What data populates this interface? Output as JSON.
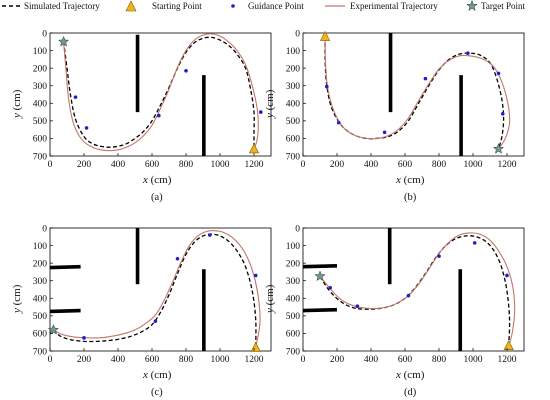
{
  "legend": {
    "simulated": "Simulated Trajectory",
    "starting": "Starting Point",
    "guidance": "Guidance Point",
    "experimental": "Experimental Trajectory",
    "target": "Target Point"
  },
  "colors": {
    "simulated": "#000000",
    "experimental": "#c0776a",
    "guidance": "#1f1fc8",
    "start_fill": "#f2b31d",
    "target_fill": "#6f9a8e",
    "obstacle": "#000000"
  },
  "chart_data": [
    {
      "type": "line",
      "label": "(a)",
      "xlabel": "x",
      "ylabel": "y",
      "unit": "(cm)",
      "xlim": [
        0,
        1300
      ],
      "ylim": [
        700,
        0
      ],
      "y_inverted": true,
      "xticks": [
        0,
        200,
        400,
        600,
        800,
        1000,
        1200
      ],
      "yticks": [
        0,
        100,
        200,
        300,
        400,
        500,
        600,
        700
      ],
      "start": [
        1200,
        660
      ],
      "target": [
        80,
        50
      ],
      "guidance_points": [
        [
          150,
          365
        ],
        [
          215,
          540
        ],
        [
          640,
          470
        ],
        [
          800,
          215
        ],
        [
          1240,
          450
        ]
      ],
      "obstacles": [
        [
          [
            515,
            10
          ],
          [
            515,
            450
          ]
        ],
        [
          [
            905,
            240
          ],
          [
            905,
            700
          ]
        ]
      ],
      "series": [
        {
          "name": "Simulated Trajectory",
          "x": [
            80,
            100,
            120,
            150,
            200,
            250,
            300,
            350,
            400,
            450,
            500,
            550,
            600,
            650,
            700,
            750,
            800,
            850,
            900,
            950,
            1000,
            1050,
            1100,
            1150,
            1180,
            1200,
            1200,
            1200,
            1200
          ],
          "y": [
            50,
            200,
            350,
            490,
            590,
            630,
            645,
            650,
            645,
            630,
            600,
            560,
            500,
            410,
            310,
            200,
            110,
            55,
            30,
            25,
            40,
            70,
            120,
            200,
            320,
            450,
            560,
            620,
            660
          ]
        },
        {
          "name": "Experimental Trajectory",
          "x": [
            80,
            95,
            110,
            140,
            190,
            250,
            300,
            350,
            400,
            450,
            500,
            550,
            600,
            650,
            700,
            750,
            800,
            850,
            900,
            950,
            1000,
            1050,
            1100,
            1150,
            1190,
            1220,
            1225,
            1215,
            1200
          ],
          "y": [
            50,
            220,
            380,
            520,
            610,
            650,
            665,
            670,
            665,
            650,
            625,
            585,
            525,
            430,
            320,
            195,
            100,
            40,
            12,
            5,
            18,
            50,
            100,
            180,
            300,
            440,
            550,
            620,
            660
          ]
        }
      ]
    },
    {
      "type": "line",
      "label": "(b)",
      "xlabel": "x",
      "ylabel": "y",
      "unit": "(cm)",
      "xlim": [
        0,
        1300
      ],
      "ylim": [
        700,
        0
      ],
      "y_inverted": true,
      "xticks": [
        0,
        200,
        400,
        600,
        800,
        1000,
        1200
      ],
      "yticks": [
        0,
        100,
        200,
        300,
        400,
        500,
        600,
        700
      ],
      "start": [
        130,
        20
      ],
      "target": [
        1150,
        660
      ],
      "guidance_points": [
        [
          140,
          305
        ],
        [
          210,
          510
        ],
        [
          480,
          565
        ],
        [
          720,
          260
        ],
        [
          970,
          115
        ],
        [
          1150,
          230
        ],
        [
          1175,
          460
        ]
      ],
      "obstacles": [
        [
          [
            515,
            0
          ],
          [
            515,
            450
          ]
        ],
        [
          [
            930,
            240
          ],
          [
            930,
            700
          ]
        ]
      ],
      "series": [
        {
          "name": "Simulated Trajectory",
          "x": [
            130,
            130,
            140,
            170,
            230,
            300,
            370,
            430,
            500,
            560,
            620,
            680,
            740,
            800,
            860,
            920,
            980,
            1040,
            1100,
            1140,
            1170,
            1180,
            1170,
            1150
          ],
          "y": [
            20,
            150,
            300,
            430,
            530,
            580,
            600,
            600,
            590,
            560,
            500,
            400,
            300,
            210,
            150,
            120,
            115,
            125,
            170,
            260,
            380,
            490,
            590,
            660
          ]
        },
        {
          "name": "Experimental Trajectory",
          "x": [
            130,
            132,
            145,
            180,
            240,
            310,
            380,
            440,
            500,
            560,
            620,
            680,
            740,
            800,
            860,
            920,
            980,
            1050,
            1120,
            1170,
            1205,
            1215,
            1190,
            1150
          ],
          "y": [
            20,
            160,
            310,
            440,
            540,
            585,
            600,
            600,
            585,
            550,
            485,
            385,
            290,
            205,
            155,
            130,
            130,
            145,
            190,
            280,
            400,
            510,
            600,
            660
          ]
        }
      ]
    },
    {
      "type": "line",
      "label": "(c)",
      "xlabel": "x",
      "ylabel": "y",
      "unit": "(cm)",
      "xlim": [
        0,
        1300
      ],
      "ylim": [
        700,
        0
      ],
      "y_inverted": true,
      "xticks": [
        0,
        200,
        400,
        600,
        800,
        1000,
        1200
      ],
      "yticks": [
        0,
        100,
        200,
        300,
        400,
        500,
        600,
        700
      ],
      "start": [
        1210,
        680
      ],
      "target": [
        20,
        580
      ],
      "guidance_points": [
        [
          200,
          625
        ],
        [
          620,
          530
        ],
        [
          750,
          175
        ],
        [
          940,
          40
        ],
        [
          1210,
          270
        ]
      ],
      "obstacles": [
        [
          [
            -30,
            225
          ],
          [
            180,
            220
          ]
        ],
        [
          [
            -30,
            475
          ],
          [
            180,
            470
          ]
        ],
        [
          [
            515,
            0
          ],
          [
            515,
            320
          ]
        ],
        [
          [
            905,
            235
          ],
          [
            905,
            700
          ]
        ]
      ],
      "series": [
        {
          "name": "Simulated Trajectory",
          "x": [
            20,
            60,
            120,
            200,
            280,
            350,
            420,
            480,
            540,
            600,
            650,
            700,
            750,
            800,
            850,
            900,
            950,
            1000,
            1050,
            1100,
            1150,
            1190,
            1210,
            1210
          ],
          "y": [
            580,
            615,
            635,
            645,
            645,
            640,
            630,
            615,
            590,
            550,
            480,
            380,
            260,
            150,
            80,
            45,
            35,
            45,
            75,
            130,
            220,
            360,
            520,
            680
          ]
        },
        {
          "name": "Experimental Trajectory",
          "x": [
            20,
            70,
            140,
            220,
            300,
            370,
            440,
            500,
            560,
            620,
            670,
            720,
            770,
            820,
            870,
            920,
            970,
            1020,
            1080,
            1140,
            1190,
            1225,
            1235,
            1210
          ],
          "y": [
            580,
            605,
            620,
            625,
            625,
            615,
            600,
            580,
            545,
            495,
            415,
            310,
            195,
            100,
            45,
            20,
            15,
            25,
            60,
            130,
            240,
            390,
            540,
            680
          ]
        }
      ]
    },
    {
      "type": "line",
      "label": "(d)",
      "xlabel": "x",
      "ylabel": "y",
      "unit": "(cm)",
      "xlim": [
        0,
        1300
      ],
      "ylim": [
        700,
        0
      ],
      "y_inverted": true,
      "xticks": [
        0,
        200,
        400,
        600,
        800,
        1000,
        1200
      ],
      "yticks": [
        0,
        100,
        200,
        300,
        400,
        500,
        600,
        700
      ],
      "start": [
        1210,
        670
      ],
      "target": [
        100,
        275
      ],
      "guidance_points": [
        [
          160,
          340
        ],
        [
          320,
          445
        ],
        [
          620,
          385
        ],
        [
          800,
          160
        ],
        [
          1010,
          85
        ],
        [
          1200,
          270
        ]
      ],
      "obstacles": [
        [
          [
            -30,
            220
          ],
          [
            200,
            215
          ]
        ],
        [
          [
            -30,
            470
          ],
          [
            200,
            465
          ]
        ],
        [
          [
            510,
            0
          ],
          [
            510,
            320
          ]
        ],
        [
          [
            925,
            235
          ],
          [
            925,
            700
          ]
        ]
      ],
      "series": [
        {
          "name": "Simulated Trajectory",
          "x": [
            100,
            150,
            210,
            270,
            330,
            400,
            470,
            540,
            600,
            660,
            720,
            780,
            840,
            900,
            960,
            1020,
            1080,
            1130,
            1170,
            1200,
            1215,
            1210
          ],
          "y": [
            275,
            350,
            410,
            445,
            460,
            462,
            455,
            435,
            400,
            340,
            260,
            170,
            100,
            60,
            45,
            50,
            80,
            140,
            230,
            360,
            520,
            670
          ]
        },
        {
          "name": "Experimental Trajectory",
          "x": [
            100,
            160,
            220,
            290,
            360,
            430,
            500,
            560,
            620,
            680,
            740,
            800,
            860,
            920,
            980,
            1040,
            1100,
            1150,
            1200,
            1235,
            1245,
            1230,
            1210
          ],
          "y": [
            275,
            345,
            405,
            440,
            455,
            458,
            448,
            425,
            385,
            320,
            235,
            145,
            80,
            40,
            28,
            35,
            70,
            130,
            220,
            340,
            480,
            600,
            670
          ]
        }
      ]
    }
  ]
}
